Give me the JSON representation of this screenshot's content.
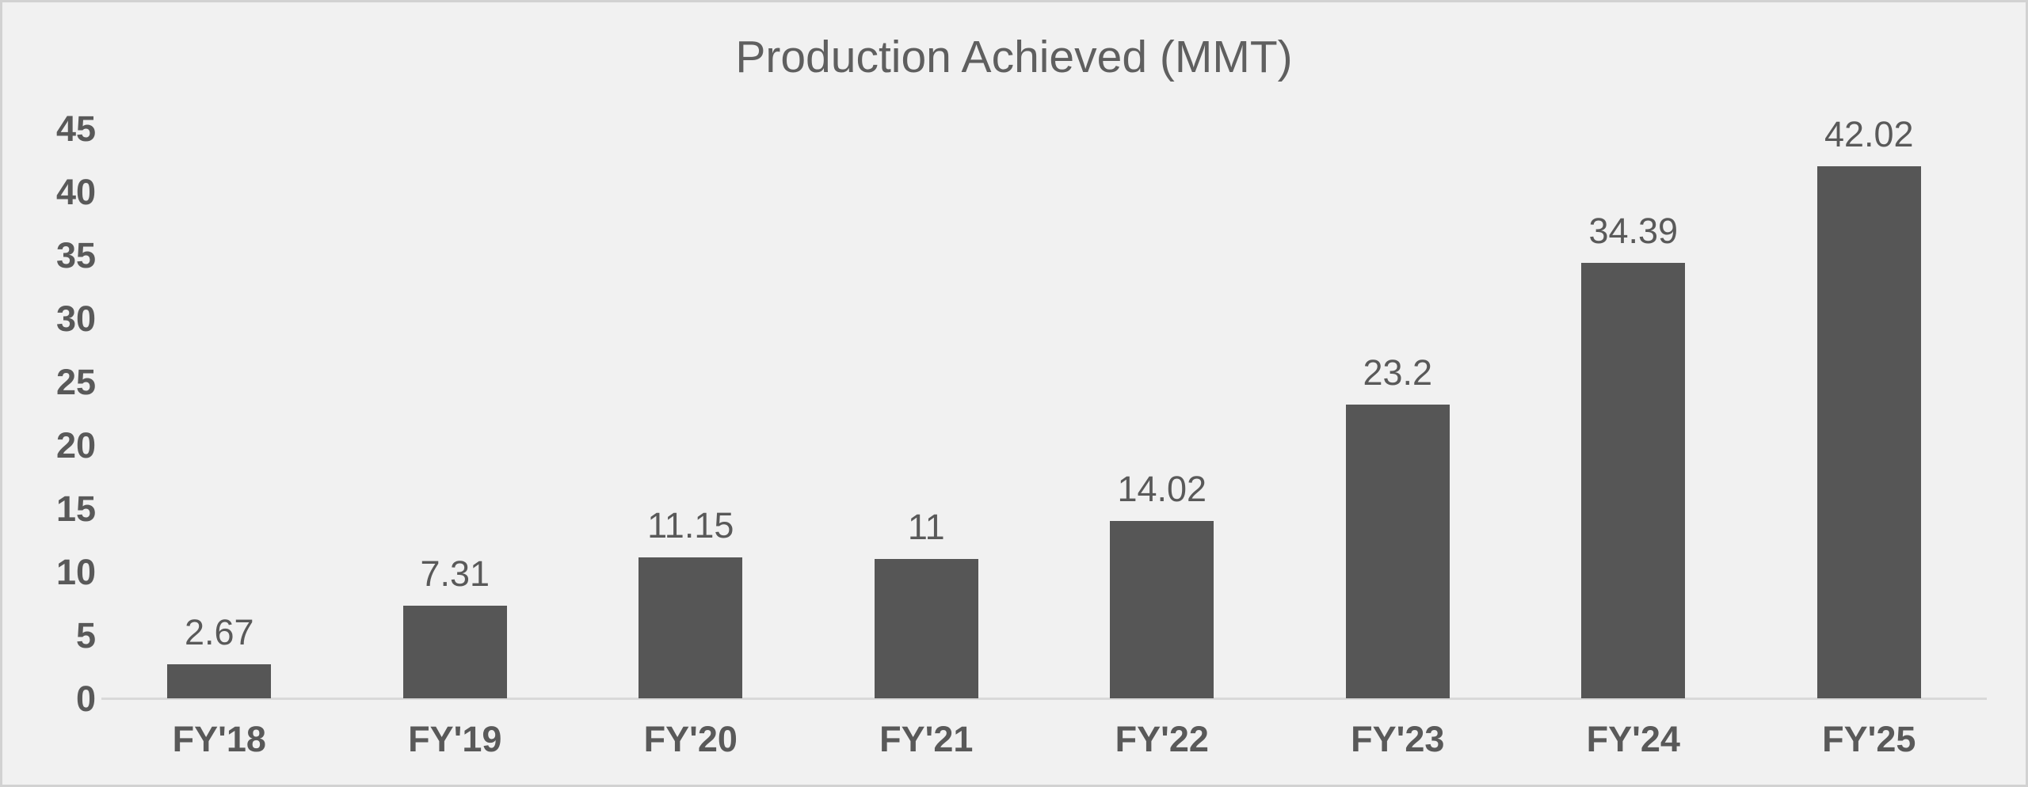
{
  "chart_data": {
    "type": "bar",
    "title": "Production Achieved (MMT)",
    "categories": [
      "FY'18",
      "FY'19",
      "FY'20",
      "FY'21",
      "FY'22",
      "FY'23",
      "FY'24",
      "FY'25"
    ],
    "values": [
      2.67,
      7.31,
      11.15,
      11,
      14.02,
      23.2,
      34.39,
      42.02
    ],
    "value_labels": [
      "2.67",
      "7.31",
      "11.15",
      "11",
      "14.02",
      "23.2",
      "34.39",
      "42.02"
    ],
    "y_ticks": [
      0,
      5,
      10,
      15,
      20,
      25,
      30,
      35,
      40,
      45
    ],
    "ylim": [
      0,
      45
    ],
    "xlabel": "",
    "ylabel": "",
    "grid": false,
    "legend": "none",
    "data_labels": "above bars",
    "colors": {
      "bar": "#565656",
      "text": "#595959",
      "title": "#5f5f5f",
      "axis_line": "#d9d9d9",
      "background": "#f1f1f1",
      "border": "#d2d2d2"
    }
  }
}
